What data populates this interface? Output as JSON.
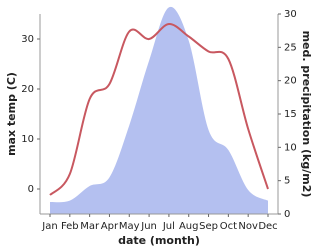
{
  "chart_data": {
    "type": "line",
    "categories": [
      "Jan",
      "Feb",
      "Mar",
      "Apr",
      "May",
      "Jun",
      "Jul",
      "Aug",
      "Sep",
      "Oct",
      "Nov",
      "Dec"
    ],
    "xlabel": "date (month)",
    "ylabel": "max temp (C)",
    "y2label": "med. precipitation (kg/m2)",
    "ylim": [
      -5,
      35
    ],
    "yticks": [
      0,
      10,
      20,
      30
    ],
    "y2lim": [
      0,
      30
    ],
    "y2ticks": [
      0,
      5,
      10,
      15,
      20,
      25,
      30
    ],
    "series": [
      {
        "name": "max temp",
        "color": "#c85860",
        "values": [
          -1.2,
          3,
          18,
          21,
          31.5,
          30,
          33,
          30.5,
          27.5,
          26,
          12,
          0
        ]
      },
      {
        "name": "med. precipitation",
        "color": "#b4c0f0",
        "axis": "y2",
        "values": [
          1.8,
          2,
          4.2,
          5.5,
          13.3,
          23,
          31,
          26,
          12.6,
          9.6,
          3.6,
          2
        ]
      }
    ]
  }
}
